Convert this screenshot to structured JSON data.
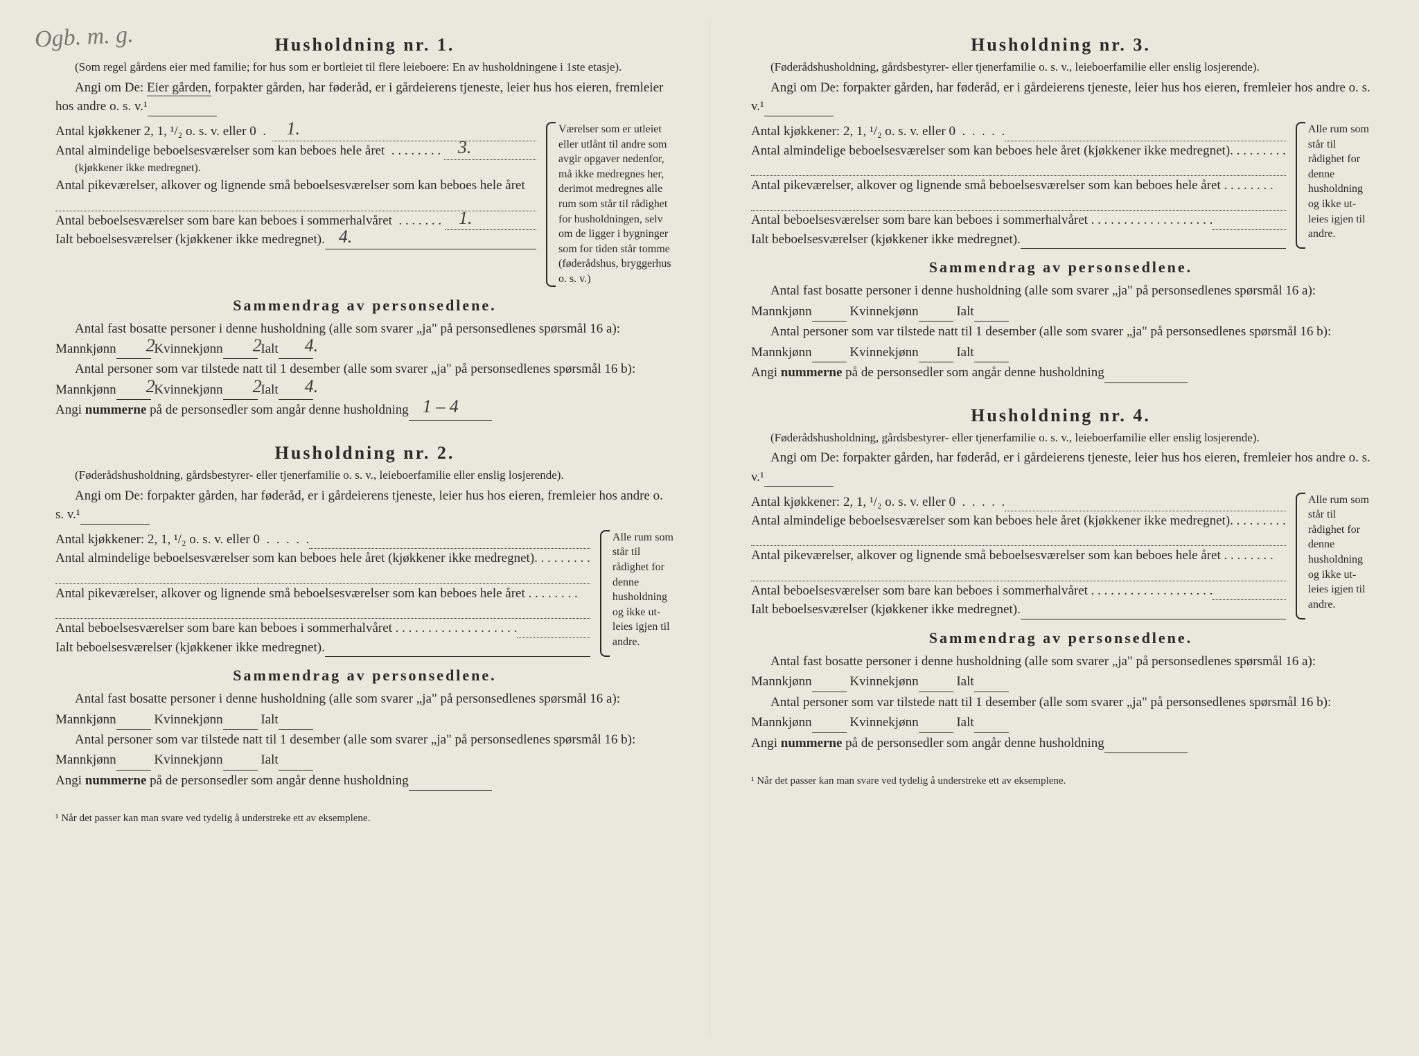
{
  "handwritten_corner": "Ogb. m. g.",
  "households": [
    {
      "title": "Husholdning nr. 1.",
      "subtitle": "(Som regel gårdens eier med familie; for hus som er bortleiet til flere leieboere: En av husholdningene i 1ste etasje).",
      "angi_prefix": "Angi om De: ",
      "angi_underlined": "Eier gården,",
      "angi_rest": " forpakter gården, har føderåd, er i gård­eierens tjeneste, leier hus hos eieren, fremleier hos andre o. s. v.¹",
      "lines": [
        {
          "label": "Antal kjøkkener 2, 1, ¹/₂ o. s. v. eller 0  .  ",
          "value": "1."
        },
        {
          "label": "Antal almindelige beboelsesværelser som kan beboes hele året  . . . . . . . . ",
          "value": "3.",
          "sub": "(kjøkkener ikke medregnet)."
        },
        {
          "label": "Antal pikeværelser, alkover og lignende små beboelsesværelser som kan beboes hele året",
          "value": ""
        },
        {
          "label": "Antal beboelsesværelser som bare kan be­boes i sommerhalvåret  . . . . . . . ",
          "value": "1."
        },
        {
          "label": "Ialt beboelsesværelser (kjøkkener ikke medregnet).",
          "value": "4."
        }
      ],
      "side_note": "Værelser som er utleiet eller utlånt til andre som avgir opgaver nedenfor, må ikke medregnes her, derimot medregnes alle rum som står til rådighet for husholdningen, selv om de ligger i bygnin­ger som for tiden står tomme (føderådshus, bryggerhus o. s. v.)",
      "side_narrow": false,
      "summary": {
        "title": "Sammendrag av personsedlene.",
        "line1_a": "Antal fast bosatte personer i denne husholdning (alle som svarer „ja\" på personsedlenes spørsmål 16 a): Mannkjønn",
        "line1_m": "2",
        "line1_b": " Kvinnekjønn",
        "line1_k": "2",
        "line1_c": " Ialt",
        "line1_i": "4.",
        "line2_a": "Antal personer som var tilstede natt til 1 desember (alle som svarer „ja\" på personsedlenes spørsmål 16 b): Mannkjønn",
        "line2_m": "2",
        "line2_b": " Kvinnekjønn",
        "line2_k": "2",
        "line2_c": " Ialt",
        "line2_i": "4.",
        "nummer_label": "Angi nummerne på de personsedler som angår denne husholdning",
        "nummer_value": "1 – 4"
      }
    },
    {
      "title": "Husholdning nr. 2.",
      "subtitle": "(Føderådshusholdning, gårdsbestyrer- eller tjenerfamilie o. s. v., leieboerfamilie eller enslig losjerende).",
      "angi_prefix": "Angi om De:  forpakter gården, har føderåd, er i gårdeierens tjeneste, leier hus hos eieren, fremleier hos andre o. s. v.¹",
      "angi_underlined": "",
      "angi_rest": "",
      "lines": [
        {
          "label": "Antal kjøkkener: 2, 1, ¹/₂ o. s. v. eller 0  .  .  .  .  .",
          "value": ""
        },
        {
          "label": "Antal almindelige beboelsesværelser som kan beboes hele året (kjøkkener ikke medregnet). . . . . . . . .",
          "value": ""
        },
        {
          "label": "Antal pikeværelser, alkover og lignende små beboelses­værelser som kan beboes hele året . . . . . . . .",
          "value": ""
        },
        {
          "label": "Antal beboelsesværelser som bare kan beboes i som­merhalvåret . . . . . . . . . . . . . . . . . . .",
          "value": ""
        },
        {
          "label": "Ialt beboelsesværelser (kjøkkener ikke medregnet).",
          "value": ""
        }
      ],
      "side_note": "Alle rum som står til rådighet for denne hushold­ning og ikke ut­leies igjen til andre.",
      "side_narrow": true,
      "summary": {
        "title": "Sammendrag av personsedlene.",
        "line1_a": "Antal fast bosatte personer i denne husholdning (alle som svarer „ja\" på personsedlenes spørsmål 16 a): Mannkjønn",
        "line1_m": "",
        "line1_b": " Kvinnekjønn",
        "line1_k": "",
        "line1_c": " Ialt",
        "line1_i": "",
        "line2_a": "Antal personer som var tilstede natt til 1 desember (alle som svarer „ja\" på personsedlenes spørsmål 16 b): Mannkjønn",
        "line2_m": "",
        "line2_b": " Kvinnekjønn",
        "line2_k": "",
        "line2_c": " Ialt",
        "line2_i": "",
        "nummer_label": "Angi nummerne på de personsedler som angår denne husholdning",
        "nummer_value": ""
      }
    },
    {
      "title": "Husholdning nr. 3.",
      "subtitle": "(Føderådshusholdning, gårdsbestyrer- eller tjenerfamilie o. s. v., leieboerfamilie eller enslig losjerende).",
      "angi_prefix": "Angi om De:  forpakter gården, har føderåd, er i gårdeierens tjeneste, leier hus hos eieren, fremleier hos andre o. s. v.¹",
      "angi_underlined": "",
      "angi_rest": "",
      "lines": [
        {
          "label": "Antal kjøkkener: 2, 1, ¹/₂ o. s. v. eller 0  .  .  .  .  .",
          "value": ""
        },
        {
          "label": "Antal almindelige beboelsesværelser som kan beboes hele året (kjøkkener ikke medregnet). . . . . . . . .",
          "value": ""
        },
        {
          "label": "Antal pikeværelser, alkover og lignende små beboelses­værelser som kan beboes hele året . . . . . . . .",
          "value": ""
        },
        {
          "label": "Antal beboelsesværelser som bare kan beboes i som­merhalvåret . . . . . . . . . . . . . . . . . . .",
          "value": ""
        },
        {
          "label": "Ialt beboelsesværelser (kjøkkener ikke medregnet).",
          "value": ""
        }
      ],
      "side_note": "Alle rum som står til rådighet for denne hushold­ning og ikke ut­leies igjen til andre.",
      "side_narrow": true,
      "summary": {
        "title": "Sammendrag av personsedlene.",
        "line1_a": "Antal fast bosatte personer i denne husholdning (alle som svarer „ja\" på personsedlenes spørsmål 16 a): Mannkjønn",
        "line1_m": "",
        "line1_b": " Kvinnekjønn",
        "line1_k": "",
        "line1_c": " Ialt",
        "line1_i": "",
        "line2_a": "Antal personer som var tilstede natt til 1 desember (alle som svarer „ja\" på personsedlenes spørsmål 16 b): Mannkjønn",
        "line2_m": "",
        "line2_b": " Kvinnekjønn",
        "line2_k": "",
        "line2_c": " Ialt",
        "line2_i": "",
        "nummer_label": "Angi nummerne på de personsedler som angår denne husholdning",
        "nummer_value": ""
      }
    },
    {
      "title": "Husholdning nr. 4.",
      "subtitle": "(Føderådshusholdning, gårdsbestyrer- eller tjenerfamilie o. s. v., leieboerfamilie eller enslig losjerende).",
      "angi_prefix": "Angi om De:  forpakter gården, har føderåd, er i gårdeierens tjeneste, leier hus hos eieren, fremleier hos andre o. s. v.¹",
      "angi_underlined": "",
      "angi_rest": "",
      "lines": [
        {
          "label": "Antal kjøkkener: 2, 1, ¹/₂ o. s. v. eller 0  .  .  .  .  .",
          "value": ""
        },
        {
          "label": "Antal almindelige beboelsesværelser som kan beboes hele året (kjøkkener ikke medregnet). . . . . . . . .",
          "value": ""
        },
        {
          "label": "Antal pikeværelser, alkover og lignende små beboelses­værelser som kan beboes hele året . . . . . . . .",
          "value": ""
        },
        {
          "label": "Antal beboelsesværelser som bare kan beboes i som­merhalvåret . . . . . . . . . . . . . . . . . . .",
          "value": ""
        },
        {
          "label": "Ialt beboelsesværelser (kjøkkener ikke medregnet).",
          "value": ""
        }
      ],
      "side_note": "Alle rum som står til rådighet for denne hushold­ning og ikke ut­leies igjen til andre.",
      "side_narrow": true,
      "summary": {
        "title": "Sammendrag av personsedlene.",
        "line1_a": "Antal fast bosatte personer i denne husholdning (alle som svarer „ja\" på personsedlenes spørsmål 16 a): Mannkjønn",
        "line1_m": "",
        "line1_b": " Kvinnekjønn",
        "line1_k": "",
        "line1_c": " Ialt",
        "line1_i": "",
        "line2_a": "Antal personer som var tilstede natt til 1 desember (alle som svarer „ja\" på personsedlenes spørsmål 16 b): Mannkjønn",
        "line2_m": "",
        "line2_b": " Kvinnekjønn",
        "line2_k": "",
        "line2_c": " Ialt",
        "line2_i": "",
        "nummer_label": "Angi nummerne på de personsedler som angår denne husholdning",
        "nummer_value": ""
      }
    }
  ],
  "footnote": "¹  Når det passer kan man svare ved tydelig å understreke ett av eksemplene."
}
